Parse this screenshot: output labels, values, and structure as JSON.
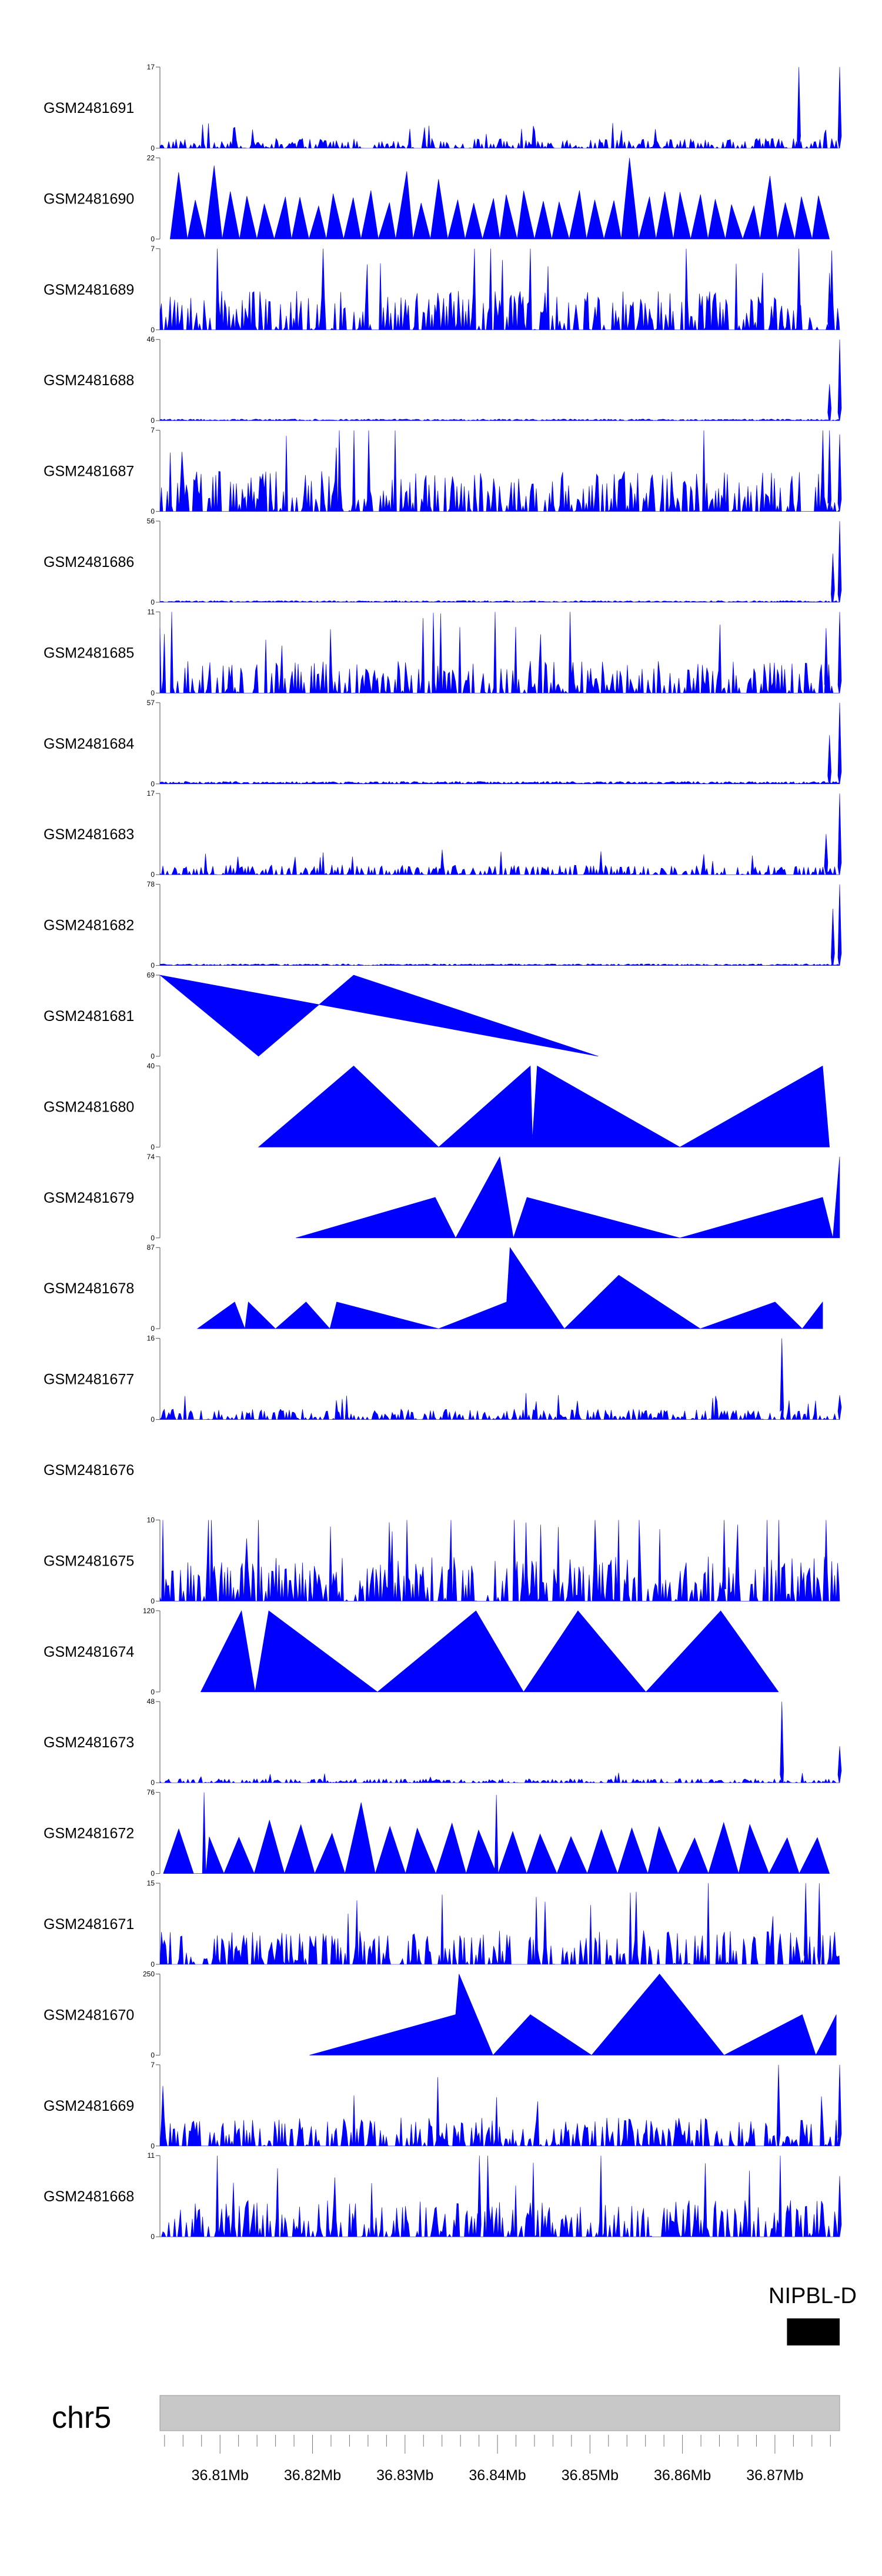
{
  "chart_data": {
    "type": "area",
    "chromosome": "chr5",
    "region_mb": [
      36.8035,
      36.877
    ],
    "x_ticks_mb": [
      36.81,
      36.82,
      36.83,
      36.84,
      36.85,
      36.86,
      36.87
    ],
    "x_tick_labels": [
      "36.81Mb",
      "36.82Mb",
      "36.83Mb",
      "36.84Mb",
      "36.85Mb",
      "36.86Mb",
      "36.87Mb"
    ],
    "gene": {
      "label": "NIPBL-D",
      "start_mb": 36.8713,
      "end_mb": 36.877
    },
    "tracks": [
      {
        "name": "GSM2481691",
        "ymax": "17",
        "style": "noise",
        "level": 0.12,
        "ends": [
          [
            0.94,
            1.0
          ],
          [
            1.0,
            1.0
          ]
        ]
      },
      {
        "name": "GSM2481690",
        "ymax": "22",
        "style": "peaks",
        "x0": 0.015,
        "x1": 0.985,
        "n": 38,
        "amp": 0.5
      },
      {
        "name": "GSM2481689",
        "ymax": "7",
        "style": "noise",
        "level": 0.48,
        "ends": [
          [
            0.94,
            1.0
          ],
          [
            0.985,
            0.7
          ]
        ]
      },
      {
        "name": "GSM2481688",
        "ymax": "46",
        "style": "noise",
        "level": 0.02,
        "ends": [
          [
            0.985,
            0.45
          ],
          [
            1.0,
            1.0
          ]
        ]
      },
      {
        "name": "GSM2481687",
        "ymax": "7",
        "style": "noise",
        "level": 0.5,
        "ends": [
          [
            0.985,
            1.0
          ],
          [
            1.0,
            0.95
          ]
        ]
      },
      {
        "name": "GSM2481686",
        "ymax": "56",
        "style": "noise",
        "level": 0.02,
        "ends": [
          [
            0.99,
            0.6
          ],
          [
            1.0,
            1.0
          ]
        ]
      },
      {
        "name": "GSM2481685",
        "ymax": "11",
        "style": "noise",
        "level": 0.4,
        "ends": [
          [
            0.98,
            0.8
          ],
          [
            1.0,
            1.0
          ]
        ]
      },
      {
        "name": "GSM2481684",
        "ymax": "57",
        "style": "noise",
        "level": 0.03,
        "ends": [
          [
            0.985,
            0.6
          ],
          [
            1.0,
            1.0
          ]
        ]
      },
      {
        "name": "GSM2481683",
        "ymax": "17",
        "style": "noise",
        "level": 0.12,
        "ends": [
          [
            0.98,
            0.5
          ],
          [
            1.0,
            1.0
          ]
        ]
      },
      {
        "name": "GSM2481682",
        "ymax": "78",
        "style": "noise",
        "level": 0.02,
        "ends": [
          [
            0.99,
            0.7
          ],
          [
            1.0,
            1.0
          ]
        ]
      },
      {
        "name": "GSM2481681",
        "ymax": "69",
        "style": "polygon",
        "pts": [
          [
            0.0,
            1.0
          ],
          [
            0.145,
            0.0
          ],
          [
            0.285,
            1.0
          ],
          [
            0.645,
            0.0
          ]
        ]
      },
      {
        "name": "GSM2481680",
        "ymax": "40",
        "style": "polygon",
        "pts": [
          [
            0.145,
            0.0
          ],
          [
            0.285,
            1.0
          ],
          [
            0.41,
            0.0
          ],
          [
            0.545,
            1.0
          ],
          [
            0.548,
            0.1
          ],
          [
            0.555,
            1.0
          ],
          [
            0.765,
            0.0
          ],
          [
            0.975,
            1.0
          ],
          [
            0.985,
            0.0
          ]
        ]
      },
      {
        "name": "GSM2481679",
        "ymax": "74",
        "style": "polygon",
        "pts": [
          [
            0.2,
            0.0
          ],
          [
            0.405,
            0.5
          ],
          [
            0.435,
            0.0
          ],
          [
            0.5,
            1.0
          ],
          [
            0.52,
            0.0
          ],
          [
            0.54,
            0.5
          ],
          [
            0.765,
            0.0
          ],
          [
            0.975,
            0.5
          ],
          [
            0.99,
            0.0
          ],
          [
            1.0,
            1.0
          ]
        ]
      },
      {
        "name": "GSM2481678",
        "ymax": "87",
        "style": "polygon",
        "pts": [
          [
            0.055,
            0.0
          ],
          [
            0.11,
            0.33
          ],
          [
            0.125,
            0.0
          ],
          [
            0.13,
            0.33
          ],
          [
            0.17,
            0.0
          ],
          [
            0.215,
            0.33
          ],
          [
            0.25,
            0.0
          ],
          [
            0.26,
            0.33
          ],
          [
            0.41,
            0.0
          ],
          [
            0.51,
            0.33
          ],
          [
            0.515,
            1.0
          ],
          [
            0.595,
            0.0
          ],
          [
            0.675,
            0.66
          ],
          [
            0.795,
            0.0
          ],
          [
            0.905,
            0.33
          ],
          [
            0.945,
            0.0
          ],
          [
            0.975,
            0.33
          ]
        ]
      },
      {
        "name": "GSM2481677",
        "ymax": "16",
        "style": "noise",
        "level": 0.13,
        "ends": [
          [
            0.915,
            1.0
          ],
          [
            1.0,
            0.3
          ]
        ]
      },
      {
        "name": "GSM2481676",
        "ymax": "",
        "style": "empty"
      },
      {
        "name": "GSM2481675",
        "ymax": "10",
        "style": "noise",
        "level": 0.55,
        "ends": [
          [
            0.83,
            1.0
          ],
          [
            0.98,
            1.0
          ]
        ]
      },
      {
        "name": "GSM2481674",
        "ymax": "120",
        "style": "polygon",
        "pts": [
          [
            0.06,
            0.0
          ],
          [
            0.12,
            1.0
          ],
          [
            0.14,
            0.0
          ],
          [
            0.16,
            1.0
          ],
          [
            0.32,
            0.0
          ],
          [
            0.465,
            1.0
          ],
          [
            0.535,
            0.0
          ],
          [
            0.615,
            1.0
          ],
          [
            0.715,
            0.0
          ],
          [
            0.825,
            1.0
          ],
          [
            0.91,
            0.0
          ]
        ]
      },
      {
        "name": "GSM2481673",
        "ymax": "48",
        "style": "noise",
        "level": 0.05,
        "ends": [
          [
            0.915,
            1.0
          ],
          [
            1.0,
            0.45
          ]
        ]
      },
      {
        "name": "GSM2481672",
        "ymax": "76",
        "style": "peaks",
        "x0": 0.005,
        "x1": 0.985,
        "n": 22,
        "amp": 0.55,
        "spikes": [
          [
            0.065,
            1.0
          ],
          [
            0.495,
            0.97
          ]
        ]
      },
      {
        "name": "GSM2481671",
        "ymax": "15",
        "style": "noise",
        "level": 0.42,
        "ends": [
          [
            0.95,
            1.0
          ],
          [
            0.97,
            1.0
          ]
        ]
      },
      {
        "name": "GSM2481670",
        "ymax": "250",
        "style": "polygon",
        "pts": [
          [
            0.22,
            0.0
          ],
          [
            0.435,
            0.5
          ],
          [
            0.44,
            1.0
          ],
          [
            0.49,
            0.0
          ],
          [
            0.545,
            0.5
          ],
          [
            0.635,
            0.0
          ],
          [
            0.735,
            1.0
          ],
          [
            0.83,
            0.0
          ],
          [
            0.945,
            0.5
          ],
          [
            0.965,
            0.0
          ],
          [
            0.995,
            0.5
          ]
        ]
      },
      {
        "name": "GSM2481669",
        "ymax": "7",
        "style": "noise",
        "level": 0.35,
        "ends": [
          [
            0.91,
            1.0
          ],
          [
            1.0,
            1.0
          ]
        ]
      },
      {
        "name": "GSM2481668",
        "ymax": "11",
        "style": "noise",
        "level": 0.45,
        "ends": [
          [
            0.47,
            1.0
          ],
          [
            1.0,
            0.75
          ]
        ]
      }
    ]
  }
}
